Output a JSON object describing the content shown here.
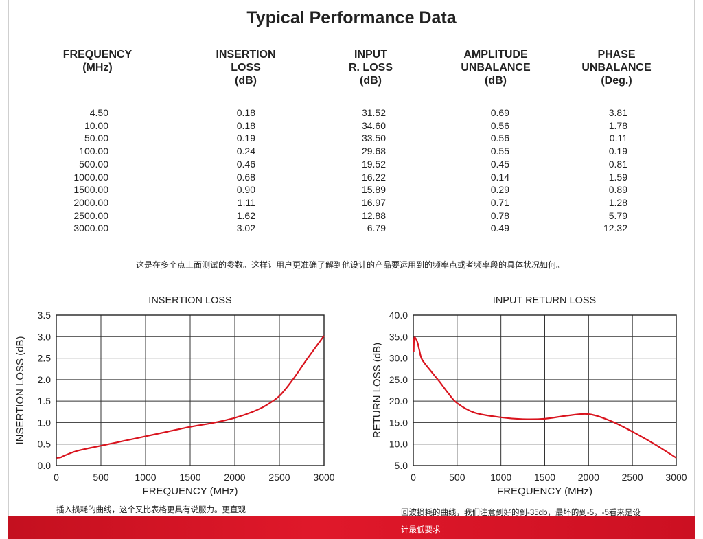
{
  "title": "Typical Performance Data",
  "table": {
    "headers": [
      [
        "FREQUENCY",
        "(MHz)"
      ],
      [
        "INSERTION",
        "LOSS",
        "(dB)"
      ],
      [
        "INPUT",
        "R. LOSS",
        "(dB)"
      ],
      [
        "AMPLITUDE",
        "UNBALANCE",
        "(dB)"
      ],
      [
        "PHASE",
        "UNBALANCE",
        "(Deg.)"
      ]
    ],
    "rows": [
      [
        "4.50",
        "0.18",
        "31.52",
        "0.69",
        "3.81"
      ],
      [
        "10.00",
        "0.18",
        "34.60",
        "0.56",
        "1.78"
      ],
      [
        "50.00",
        "0.19",
        "33.50",
        "0.56",
        "0.11"
      ],
      [
        "100.00",
        "0.24",
        "29.68",
        "0.55",
        "0.19"
      ],
      [
        "500.00",
        "0.46",
        "19.52",
        "0.45",
        "0.81"
      ],
      [
        "1000.00",
        "0.68",
        "16.22",
        "0.14",
        "1.59"
      ],
      [
        "1500.00",
        "0.90",
        "15.89",
        "0.29",
        "0.89"
      ],
      [
        "2000.00",
        "1.11",
        "16.97",
        "0.71",
        "1.28"
      ],
      [
        "2500.00",
        "1.62",
        "12.88",
        "0.78",
        "5.79"
      ],
      [
        "3000.00",
        "3.02",
        "6.79",
        "0.49",
        "12.32"
      ]
    ]
  },
  "note": "这是在多个点上面测试的参数。这样让用户更准确了解到他设计的产品要运用到的频率点或者频率段的具体状况如何。",
  "captions": {
    "left": "插入损耗的曲线，这个又比表格更具有说服力。更直观",
    "right_line1": "回波损耗的曲线，我们注意到好的到-35db，最坏的到-5，-5看来是设",
    "right_line2": "计最低要求"
  },
  "colors": {
    "curve": "#d9141e",
    "grid": "#333333",
    "footer": "#d5152a"
  },
  "chart_data": [
    {
      "type": "line",
      "title": "INSERTION LOSS",
      "xlabel": "FREQUENCY (MHz)",
      "ylabel": "INSERTION LOSS (dB)",
      "xlim": [
        0,
        3000
      ],
      "ylim": [
        0,
        3.5
      ],
      "x_ticks": [
        0,
        500,
        1000,
        1500,
        2000,
        2500,
        3000
      ],
      "y_ticks": [
        0.0,
        0.5,
        1.0,
        1.5,
        2.0,
        2.5,
        3.0,
        3.5
      ],
      "y_tick_decimals": 1,
      "grid": true,
      "series": [
        {
          "x": [
            4.5,
            10,
            50,
            100,
            250,
            500,
            750,
            1000,
            1250,
            1500,
            1750,
            2000,
            2200,
            2350,
            2500,
            2650,
            2800,
            3000
          ],
          "y": [
            0.18,
            0.18,
            0.19,
            0.24,
            0.35,
            0.46,
            0.57,
            0.68,
            0.79,
            0.9,
            0.99,
            1.11,
            1.25,
            1.4,
            1.62,
            2.0,
            2.45,
            3.02
          ]
        }
      ]
    },
    {
      "type": "line",
      "title": "INPUT RETURN LOSS",
      "xlabel": "FREQUENCY (MHz)",
      "ylabel": "RETURN LOSS (dB)",
      "xlim": [
        0,
        3000
      ],
      "ylim": [
        5,
        40
      ],
      "x_ticks": [
        0,
        500,
        1000,
        1500,
        2000,
        2500,
        3000
      ],
      "y_ticks": [
        5.0,
        10.0,
        15.0,
        20.0,
        25.0,
        30.0,
        35.0,
        40.0
      ],
      "y_tick_decimals": 1,
      "grid": true,
      "series": [
        {
          "x": [
            4.5,
            10,
            30,
            50,
            70,
            100,
            200,
            300,
            400,
            500,
            700,
            1000,
            1250,
            1500,
            1750,
            2000,
            2250,
            2500,
            2750,
            3000
          ],
          "y": [
            31.52,
            34.6,
            34.5,
            33.5,
            31.8,
            29.68,
            27.0,
            24.5,
            21.8,
            19.52,
            17.3,
            16.22,
            15.8,
            15.89,
            16.6,
            16.97,
            15.4,
            12.88,
            10.0,
            6.79
          ]
        }
      ]
    }
  ]
}
